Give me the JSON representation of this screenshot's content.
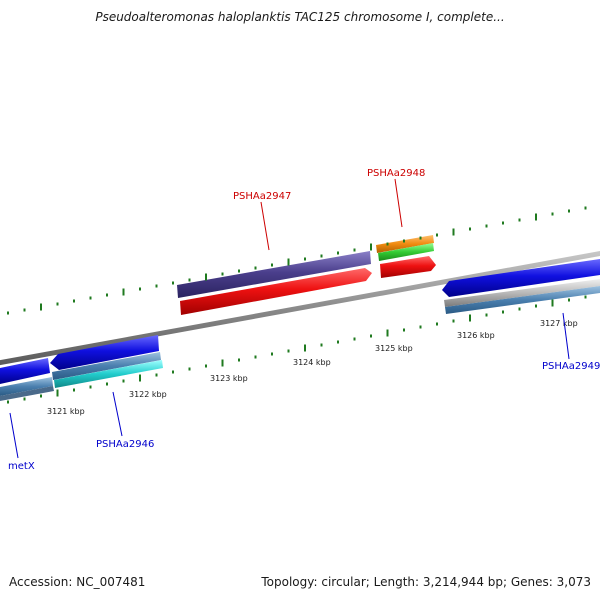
{
  "title": "Pseudoalteromonas haloplanktis TAC125 chromosome I, complete...",
  "footer": {
    "accession": "Accession: NC_007481",
    "stats": "Topology: circular; Length: 3,214,944 bp; Genes: 3,073"
  },
  "tick_labels": [
    "3121 kbp",
    "3122 kbp",
    "3123 kbp",
    "3124 kbp",
    "3125 kbp",
    "3126 kbp",
    "3127 kbp"
  ],
  "gene_labels": [
    {
      "text": "PSHAa2947",
      "color": "#cc0000"
    },
    {
      "text": "PSHAa2948",
      "color": "#cc0000"
    },
    {
      "text": "PSHAa2946",
      "color": "#0000cc"
    },
    {
      "text": "PSHAa2949",
      "color": "#0000cc"
    },
    {
      "text": "metX",
      "color": "#0000cc"
    }
  ],
  "colors": {
    "backbone": "#8a8a8a",
    "tick": "#1f7a1f",
    "forward_cds": "#ee1111",
    "forward_gene": "#4b3f8c",
    "reverse_cds": "#1010e0",
    "reverse_gene": "#4a7fae",
    "orange": "#f08a10",
    "green": "#33cc33",
    "cyan": "#22cccc",
    "silver": "#b8b8b8"
  }
}
